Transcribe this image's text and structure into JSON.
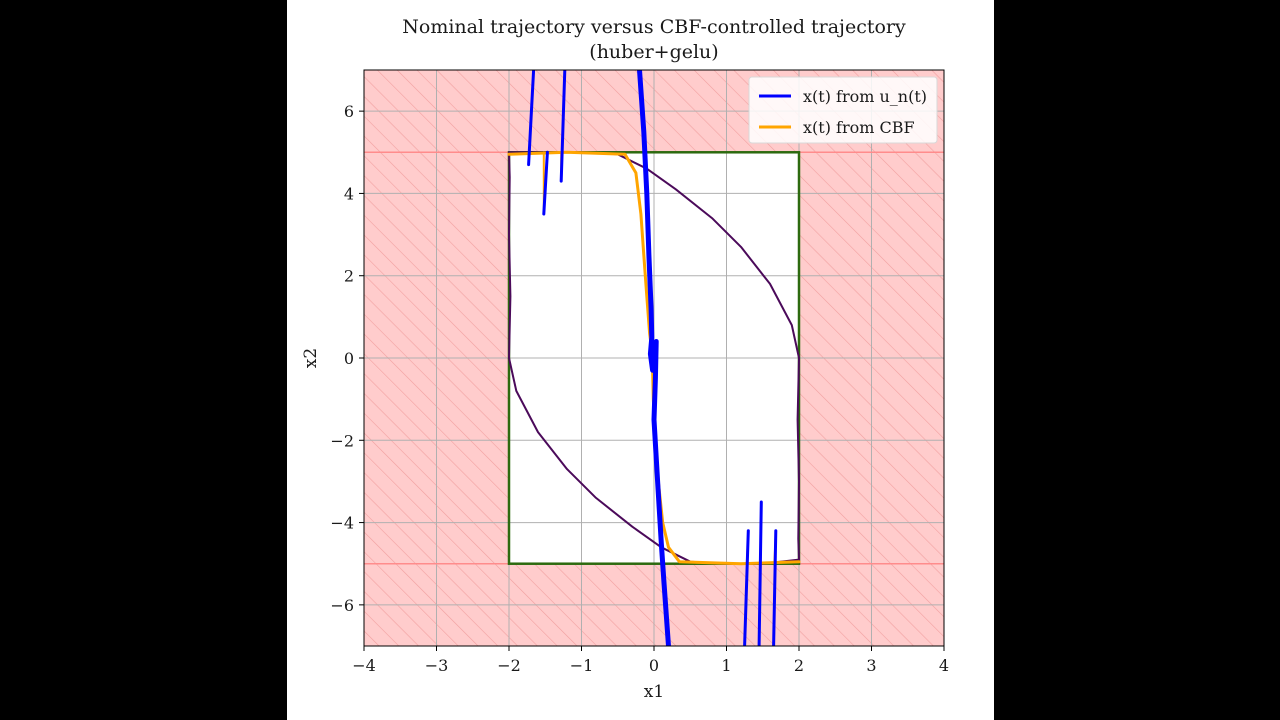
{
  "chart_data": {
    "type": "line",
    "title": "Nominal trajectory versus CBF-controlled trajectory",
    "subtitle": "(huber+gelu)",
    "xlabel": "x1",
    "ylabel": "x2",
    "xlim": [
      -4,
      4
    ],
    "ylim": [
      -7,
      7
    ],
    "xticks": [
      -4,
      -3,
      -2,
      -1,
      0,
      1,
      2,
      3,
      4
    ],
    "yticks": [
      -6,
      -4,
      -2,
      0,
      2,
      4,
      6
    ],
    "grid": true,
    "legend_position": "top-right",
    "unsafe_region": {
      "color": "#ffcccc",
      "hatch": "diagonal",
      "hatch_color": "#f2a0a0"
    },
    "safe_set": {
      "x1_range": [
        -2,
        2
      ],
      "x2_range": [
        -5,
        5
      ],
      "edge_color": "#2d6a0f"
    },
    "unsafe_boundary_lines": {
      "y_values": [
        -5,
        5
      ],
      "color": "#ff8c8c"
    },
    "legend": [
      {
        "label": "x(t) from u_n(t)",
        "color": "#0000ff"
      },
      {
        "label": "x(t) from CBF",
        "color": "#ffa500"
      }
    ],
    "series": [
      {
        "name": "x(t) from u_n(t)",
        "color": "#0000ff",
        "stroke_width": 5,
        "points": [
          [
            -0.2,
            7
          ],
          [
            -0.14,
            5.5
          ],
          [
            -0.1,
            4
          ],
          [
            -0.07,
            2.5
          ],
          [
            -0.04,
            1.2
          ],
          [
            -0.03,
            0.5
          ],
          [
            -0.05,
            0.1
          ],
          [
            -0.02,
            -0.3
          ],
          [
            0.03,
            0.4
          ],
          [
            0.02,
            -0.5
          ],
          [
            0.0,
            -1.5
          ],
          [
            0.05,
            -3
          ],
          [
            0.1,
            -4.5
          ],
          [
            0.14,
            -5.5
          ],
          [
            0.2,
            -7
          ]
        ]
      },
      {
        "name": "x(t) from u_n(t) — lower",
        "color": "#0000ff",
        "stroke_width": 3,
        "points": [
          [
            1.25,
            -7
          ],
          [
            1.3,
            -4.2
          ]
        ]
      },
      {
        "name": "x(t) from u_n(t) — lower",
        "color": "#0000ff",
        "stroke_width": 3,
        "points": [
          [
            1.45,
            -7
          ],
          [
            1.48,
            -3.5
          ]
        ]
      },
      {
        "name": "x(t) from u_n(t) — lower",
        "color": "#0000ff",
        "stroke_width": 3,
        "points": [
          [
            1.65,
            -7
          ],
          [
            1.68,
            -4.2
          ]
        ]
      },
      {
        "name": "x(t) from u_n(t) — upper",
        "color": "#0000ff",
        "stroke_width": 3,
        "points": [
          [
            -1.73,
            4.7
          ],
          [
            -1.66,
            7
          ]
        ]
      },
      {
        "name": "x(t) from u_n(t) — upper",
        "color": "#0000ff",
        "stroke_width": 3,
        "points": [
          [
            -1.52,
            3.5
          ],
          [
            -1.47,
            5
          ]
        ]
      },
      {
        "name": "x(t) from u_n(t) — upper",
        "color": "#0000ff",
        "stroke_width": 3,
        "points": [
          [
            -1.28,
            4.3
          ],
          [
            -1.23,
            7
          ]
        ]
      },
      {
        "name": "x(t) from CBF",
        "color": "#ffa500",
        "stroke_width": 3,
        "points": [
          [
            -2.0,
            4.95
          ],
          [
            -1.2,
            5.0
          ],
          [
            -0.4,
            4.95
          ],
          [
            -0.25,
            4.5
          ],
          [
            -0.18,
            3.5
          ],
          [
            -0.14,
            2.5
          ],
          [
            -0.1,
            1.5
          ],
          [
            -0.06,
            0.6
          ],
          [
            -0.03,
            0.2
          ],
          [
            -0.02,
            -0.3
          ],
          [
            -0.01,
            -1.0
          ],
          [
            0.02,
            -2.0
          ],
          [
            0.06,
            -3.0
          ],
          [
            0.12,
            -4.0
          ],
          [
            0.2,
            -4.6
          ],
          [
            0.35,
            -4.95
          ],
          [
            1.2,
            -5.0
          ],
          [
            2.0,
            -4.95
          ]
        ]
      },
      {
        "name": "x(t) from CBF — spikes",
        "color": "#ffa500",
        "stroke_width": 2,
        "points": [
          [
            -1.73,
            5.0
          ],
          [
            -1.73,
            4.7
          ]
        ]
      },
      {
        "name": "x(t) from CBF — spikes",
        "color": "#ffa500",
        "stroke_width": 2,
        "points": [
          [
            -1.52,
            5.0
          ],
          [
            -1.52,
            3.5
          ]
        ]
      },
      {
        "name": "x(t) from CBF — spikes",
        "color": "#ffa500",
        "stroke_width": 2,
        "points": [
          [
            -1.28,
            5.0
          ],
          [
            -1.28,
            4.3
          ]
        ]
      },
      {
        "name": "x(t) from CBF — spikes",
        "color": "#ffa500",
        "stroke_width": 2,
        "points": [
          [
            1.28,
            -5.0
          ],
          [
            1.3,
            -4.2
          ]
        ]
      },
      {
        "name": "x(t) from CBF — spikes",
        "color": "#ffa500",
        "stroke_width": 2,
        "points": [
          [
            1.47,
            -5.0
          ],
          [
            1.48,
            -3.5
          ]
        ]
      },
      {
        "name": "x(t) from CBF — spikes",
        "color": "#ffa500",
        "stroke_width": 2,
        "points": [
          [
            1.66,
            -5.0
          ],
          [
            1.68,
            -4.2
          ]
        ]
      },
      {
        "name": "limit cycle",
        "color": "#4b0a5a",
        "stroke_width": 2,
        "points": [
          [
            -2.0,
            5.0
          ],
          [
            -1.5,
            5.0
          ],
          [
            -1.0,
            5.0
          ],
          [
            -0.5,
            4.95
          ],
          [
            -0.1,
            4.6
          ],
          [
            0.3,
            4.1
          ],
          [
            0.8,
            3.4
          ],
          [
            1.2,
            2.7
          ],
          [
            1.6,
            1.8
          ],
          [
            1.9,
            0.8
          ],
          [
            2.0,
            0.0
          ],
          [
            1.98,
            -1.5
          ],
          [
            2.0,
            -3.0
          ],
          [
            1.99,
            -4.4
          ],
          [
            2.0,
            -4.9
          ],
          [
            1.5,
            -5.0
          ],
          [
            1.0,
            -5.0
          ],
          [
            0.5,
            -4.95
          ],
          [
            0.1,
            -4.6
          ],
          [
            -0.3,
            -4.1
          ],
          [
            -0.8,
            -3.4
          ],
          [
            -1.2,
            -2.7
          ],
          [
            -1.6,
            -1.8
          ],
          [
            -1.9,
            -0.8
          ],
          [
            -2.0,
            0.0
          ],
          [
            -1.98,
            1.5
          ],
          [
            -2.0,
            3.0
          ],
          [
            -1.99,
            4.4
          ],
          [
            -2.0,
            5.0
          ]
        ]
      }
    ]
  }
}
